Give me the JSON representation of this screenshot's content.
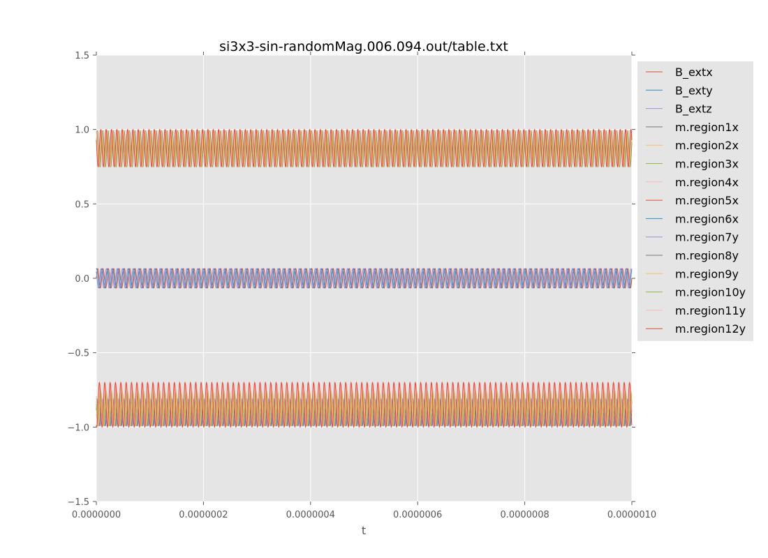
{
  "chart_data": {
    "type": "line",
    "title": "si3x3-sin-randomMag.006.094.out/table.txt",
    "xlabel": "t",
    "ylabel": "",
    "xlim": [
      0,
      1e-06
    ],
    "ylim": [
      -1.5,
      1.5
    ],
    "x_ticks": [
      "0.0000000",
      "0.0000002",
      "0.0000004",
      "0.0000006",
      "0.0000008",
      "0.0000010"
    ],
    "x_tick_values": [
      0,
      2e-07,
      4e-07,
      6e-07,
      8e-07,
      1e-06
    ],
    "y_ticks": [
      "−1.5",
      "−1.0",
      "−0.5",
      "0.0",
      "0.5",
      "1.0",
      "1.5"
    ],
    "y_tick_values": [
      -1.5,
      -1.0,
      -0.5,
      0.0,
      0.5,
      1.0,
      1.5
    ],
    "grid": true,
    "background": "#e5e5e5",
    "legend_position": "outside right",
    "oscillation_cycles": 100,
    "series": [
      {
        "name": "B_extx",
        "color": "#E24A33",
        "center": 0.0,
        "amplitude": 0.065,
        "phase": 0.0
      },
      {
        "name": "B_exty",
        "color": "#348ABD",
        "center": 0.0,
        "amplitude": 0.065,
        "phase": 1.2
      },
      {
        "name": "B_extz",
        "color": "#988ED5",
        "center": 0.0,
        "amplitude": 0.065,
        "phase": 2.4
      },
      {
        "name": "m.region1x",
        "color": "#777777",
        "center": 0.87,
        "amplitude": 0.12,
        "phase": 0.4
      },
      {
        "name": "m.region2x",
        "color": "#FBC15E",
        "center": 0.87,
        "amplitude": 0.12,
        "phase": 0.9
      },
      {
        "name": "m.region3x",
        "color": "#8EBA42",
        "center": 0.87,
        "amplitude": 0.12,
        "phase": 1.5
      },
      {
        "name": "m.region4x",
        "color": "#FFB5B8",
        "center": 0.875,
        "amplitude": 0.125,
        "phase": 2.1
      },
      {
        "name": "m.region5x",
        "color": "#E24A33",
        "center": 0.875,
        "amplitude": 0.125,
        "phase": 2.7
      },
      {
        "name": "m.region6x",
        "color": "#348ABD",
        "center": -0.91,
        "amplitude": 0.08,
        "phase": 0.3
      },
      {
        "name": "m.region7y",
        "color": "#988ED5",
        "center": -0.9,
        "amplitude": 0.09,
        "phase": 0.8
      },
      {
        "name": "m.region8y",
        "color": "#777777",
        "center": -0.9,
        "amplitude": 0.09,
        "phase": 1.6
      },
      {
        "name": "m.region9y",
        "color": "#FBC15E",
        "center": -0.88,
        "amplitude": 0.11,
        "phase": 2.2
      },
      {
        "name": "m.region10y",
        "color": "#8EBA42",
        "center": -0.87,
        "amplitude": 0.12,
        "phase": 2.9
      },
      {
        "name": "m.region11y",
        "color": "#FFB5B8",
        "center": -0.85,
        "amplitude": 0.14,
        "phase": 3.6
      },
      {
        "name": "m.region12y",
        "color": "#E24A33",
        "center": -0.85,
        "amplitude": 0.15,
        "phase": 4.3
      }
    ]
  }
}
